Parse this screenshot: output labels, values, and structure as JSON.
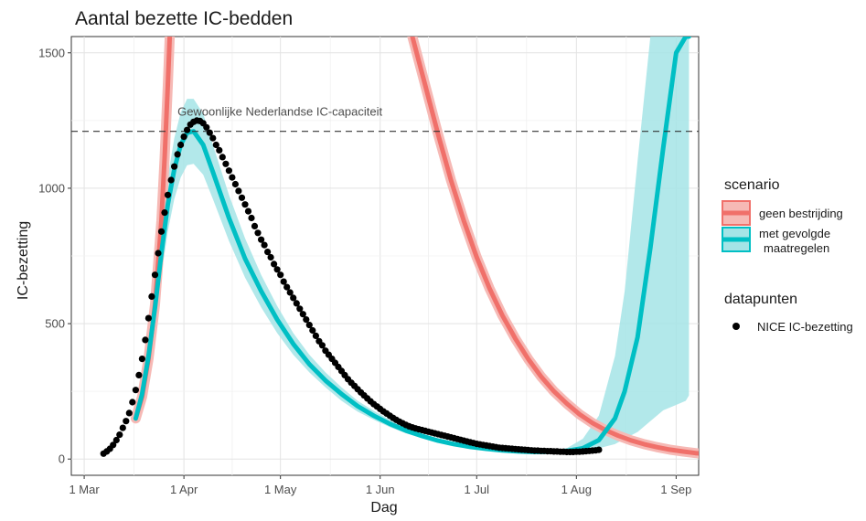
{
  "chart_data": {
    "type": "line",
    "title": "Aantal bezette IC-bedden",
    "xlabel": "Dag",
    "ylabel": "IC-bezetting",
    "xlim_days": [
      -4,
      191
    ],
    "ylim": [
      -60,
      1560
    ],
    "x_ticks": [
      {
        "label": "1 Mar",
        "day": 0
      },
      {
        "label": "1 Apr",
        "day": 31
      },
      {
        "label": "1 May",
        "day": 61
      },
      {
        "label": "1 Jun",
        "day": 92
      },
      {
        "label": "1 Jul",
        "day": 122
      },
      {
        "label": "1 Aug",
        "day": 153
      },
      {
        "label": "1 Sep",
        "day": 184
      }
    ],
    "y_ticks": [
      0,
      500,
      1000,
      1500
    ],
    "grid": true,
    "hline": {
      "value": 1210,
      "label": "Gewoonlijke Nederlandse IC-capaciteit"
    },
    "legend": {
      "placement": "right",
      "scenario_title": "scenario",
      "scenario_items": [
        {
          "label": "geen bestrijding",
          "color": "#F0706A"
        },
        {
          "label_lines": [
            "met gevolgde",
            "maatregelen"
          ],
          "color": "#00BFC4"
        }
      ],
      "points_title": "datapunten",
      "points_items": [
        {
          "label": "NICE IC-bezetting",
          "color": "#000000"
        }
      ]
    },
    "series": [
      {
        "name": "geen bestrijding",
        "color": "#F0706A",
        "segments": [
          {
            "x": [
              16,
              18,
              20,
              22,
              24,
              25,
              26,
              26.6
            ],
            "y": [
              150,
              230,
              370,
              570,
              880,
              1110,
              1380,
              1560
            ]
          },
          {
            "x": [
              102,
              106,
              110,
              114,
              118,
              122,
              126,
              130,
              134,
              138,
              142,
              146,
              150,
              154,
              158,
              162,
              166,
              170,
              174,
              178,
              182,
              186,
              190,
              194,
              197,
              201
            ],
            "y": [
              1560,
              1380,
              1200,
              1030,
              880,
              745,
              630,
              530,
              445,
              370,
              305,
              250,
              205,
              165,
              133,
              107,
              86,
              69,
              55,
              44,
              35,
              28,
              22,
              18,
              14,
              10
            ]
          }
        ]
      },
      {
        "name": "met gevolgde maatregelen",
        "color": "#00BFC4",
        "band_color": "#A4E4E6",
        "x": [
          16,
          18,
          20,
          22,
          24,
          26,
          28,
          30,
          32,
          34,
          37,
          40,
          45,
          50,
          55,
          60,
          65,
          70,
          75,
          80,
          85,
          90,
          95,
          100,
          105,
          110,
          115,
          120,
          125,
          130,
          135,
          140,
          145,
          150,
          155,
          160,
          165,
          168,
          172,
          176,
          180,
          184,
          187,
          188
        ],
        "y": [
          150,
          240,
          380,
          560,
          760,
          940,
          1070,
          1160,
          1205,
          1210,
          1160,
          1060,
          890,
          740,
          620,
          515,
          425,
          350,
          290,
          240,
          195,
          160,
          130,
          105,
          85,
          68,
          55,
          45,
          38,
          32,
          28,
          26,
          27,
          30,
          40,
          70,
          150,
          250,
          450,
          780,
          1150,
          1500,
          1560,
          1560
        ],
        "lower": [
          140,
          225,
          350,
          510,
          680,
          840,
          960,
          1040,
          1085,
          1090,
          1050,
          960,
          805,
          670,
          560,
          465,
          385,
          320,
          265,
          215,
          175,
          145,
          118,
          95,
          78,
          62,
          50,
          41,
          35,
          30,
          26,
          24,
          23,
          25,
          30,
          40,
          55,
          75,
          100,
          140,
          180,
          200,
          215,
          235
        ],
        "upper": [
          160,
          255,
          410,
          610,
          840,
          1040,
          1185,
          1280,
          1330,
          1330,
          1275,
          1160,
          975,
          815,
          680,
          565,
          465,
          385,
          320,
          265,
          215,
          178,
          145,
          117,
          95,
          76,
          62,
          51,
          43,
          37,
          33,
          31,
          33,
          40,
          75,
          160,
          380,
          620,
          1100,
          1560,
          1560,
          1560,
          1560,
          1560
        ]
      }
    ],
    "points": {
      "name": "NICE IC-bezetting",
      "color": "#000000",
      "day0": 6,
      "values": [
        20,
        28,
        38,
        52,
        70,
        90,
        115,
        140,
        170,
        210,
        255,
        310,
        370,
        440,
        520,
        600,
        680,
        760,
        840,
        910,
        975,
        1030,
        1080,
        1125,
        1160,
        1190,
        1215,
        1235,
        1245,
        1250,
        1248,
        1240,
        1225,
        1205,
        1185,
        1160,
        1140,
        1115,
        1090,
        1065,
        1040,
        1015,
        990,
        965,
        940,
        915,
        890,
        860,
        835,
        810,
        790,
        765,
        745,
        720,
        700,
        680,
        655,
        635,
        615,
        595,
        575,
        555,
        535,
        515,
        495,
        475,
        455,
        435,
        420,
        400,
        385,
        370,
        355,
        340,
        325,
        310,
        295,
        282,
        270,
        258,
        246,
        235,
        224,
        213,
        203,
        194,
        185,
        176,
        168,
        160,
        152,
        145,
        138,
        132,
        126,
        121,
        117,
        113,
        110,
        107,
        104,
        101,
        98,
        95,
        92,
        89,
        86,
        83,
        80,
        77,
        74,
        71,
        68,
        65,
        62,
        59,
        56,
        54,
        52,
        50,
        48,
        46,
        44,
        42,
        41,
        40,
        39,
        38,
        37,
        36,
        35,
        34,
        33,
        32,
        31,
        31,
        30,
        30,
        29,
        29,
        28,
        28,
        27,
        27,
        26,
        26,
        26,
        27,
        27,
        28,
        29,
        30,
        31,
        32,
        34
      ]
    }
  }
}
